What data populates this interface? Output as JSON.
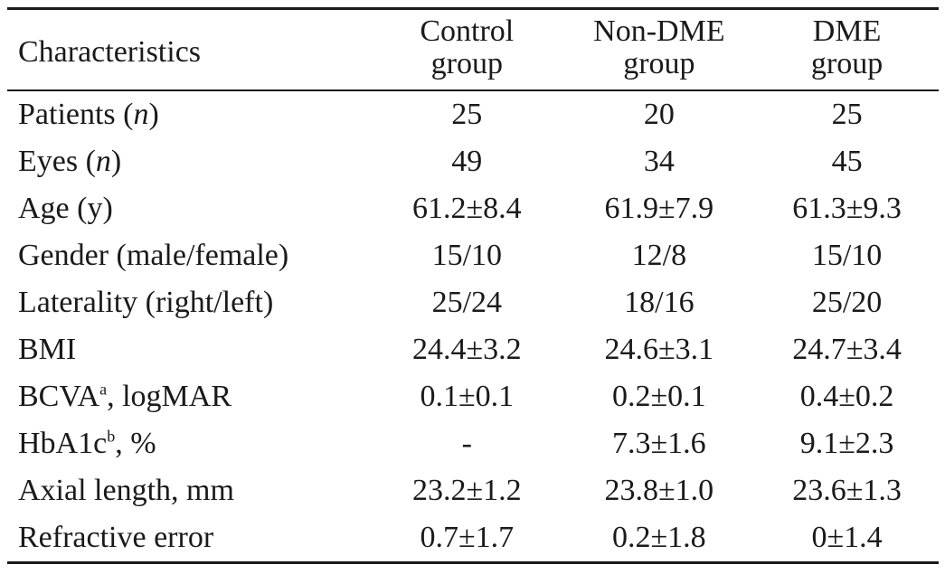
{
  "table": {
    "headers": {
      "characteristics": "Characteristics",
      "control": [
        "Control",
        "group"
      ],
      "nondme": [
        "Non-DME",
        "group"
      ],
      "dme": [
        "DME",
        "group"
      ]
    },
    "rows": [
      {
        "label_pre": "Patients (",
        "label_italic": "n",
        "label_post": ")",
        "sup": "",
        "label_tail": "",
        "values": [
          "25",
          "20",
          "25"
        ]
      },
      {
        "label_pre": "Eyes (",
        "label_italic": "n",
        "label_post": ")",
        "sup": "",
        "label_tail": "",
        "values": [
          "49",
          "34",
          "45"
        ]
      },
      {
        "label_pre": "Age (y)",
        "label_italic": "",
        "label_post": "",
        "sup": "",
        "label_tail": "",
        "values": [
          "61.2±8.4",
          "61.9±7.9",
          "61.3±9.3"
        ]
      },
      {
        "label_pre": "Gender (male/female)",
        "label_italic": "",
        "label_post": "",
        "sup": "",
        "label_tail": "",
        "values": [
          "15/10",
          "12/8",
          "15/10"
        ]
      },
      {
        "label_pre": "Laterality (right/left)",
        "label_italic": "",
        "label_post": "",
        "sup": "",
        "label_tail": "",
        "values": [
          "25/24",
          "18/16",
          "25/20"
        ]
      },
      {
        "label_pre": "BMI",
        "label_italic": "",
        "label_post": "",
        "sup": "",
        "label_tail": "",
        "values": [
          "24.4±3.2",
          "24.6±3.1",
          "24.7±3.4"
        ]
      },
      {
        "label_pre": "BCVA",
        "label_italic": "",
        "label_post": "",
        "sup": "a",
        "label_tail": ", logMAR",
        "values": [
          "0.1±0.1",
          "0.2±0.1",
          "0.4±0.2"
        ]
      },
      {
        "label_pre": "HbA1c",
        "label_italic": "",
        "label_post": "",
        "sup": "b",
        "label_tail": ", %",
        "values": [
          "-",
          "7.3±1.6",
          "9.1±2.3"
        ]
      },
      {
        "label_pre": "Axial length, mm",
        "label_italic": "",
        "label_post": "",
        "sup": "",
        "label_tail": "",
        "values": [
          "23.2±1.2",
          "23.8±1.0",
          "23.6±1.3"
        ]
      },
      {
        "label_pre": "Refractive error",
        "label_italic": "",
        "label_post": "",
        "sup": "",
        "label_tail": "",
        "values": [
          "0.7±1.7",
          "0.2±1.8",
          "0±1.4"
        ]
      }
    ]
  }
}
